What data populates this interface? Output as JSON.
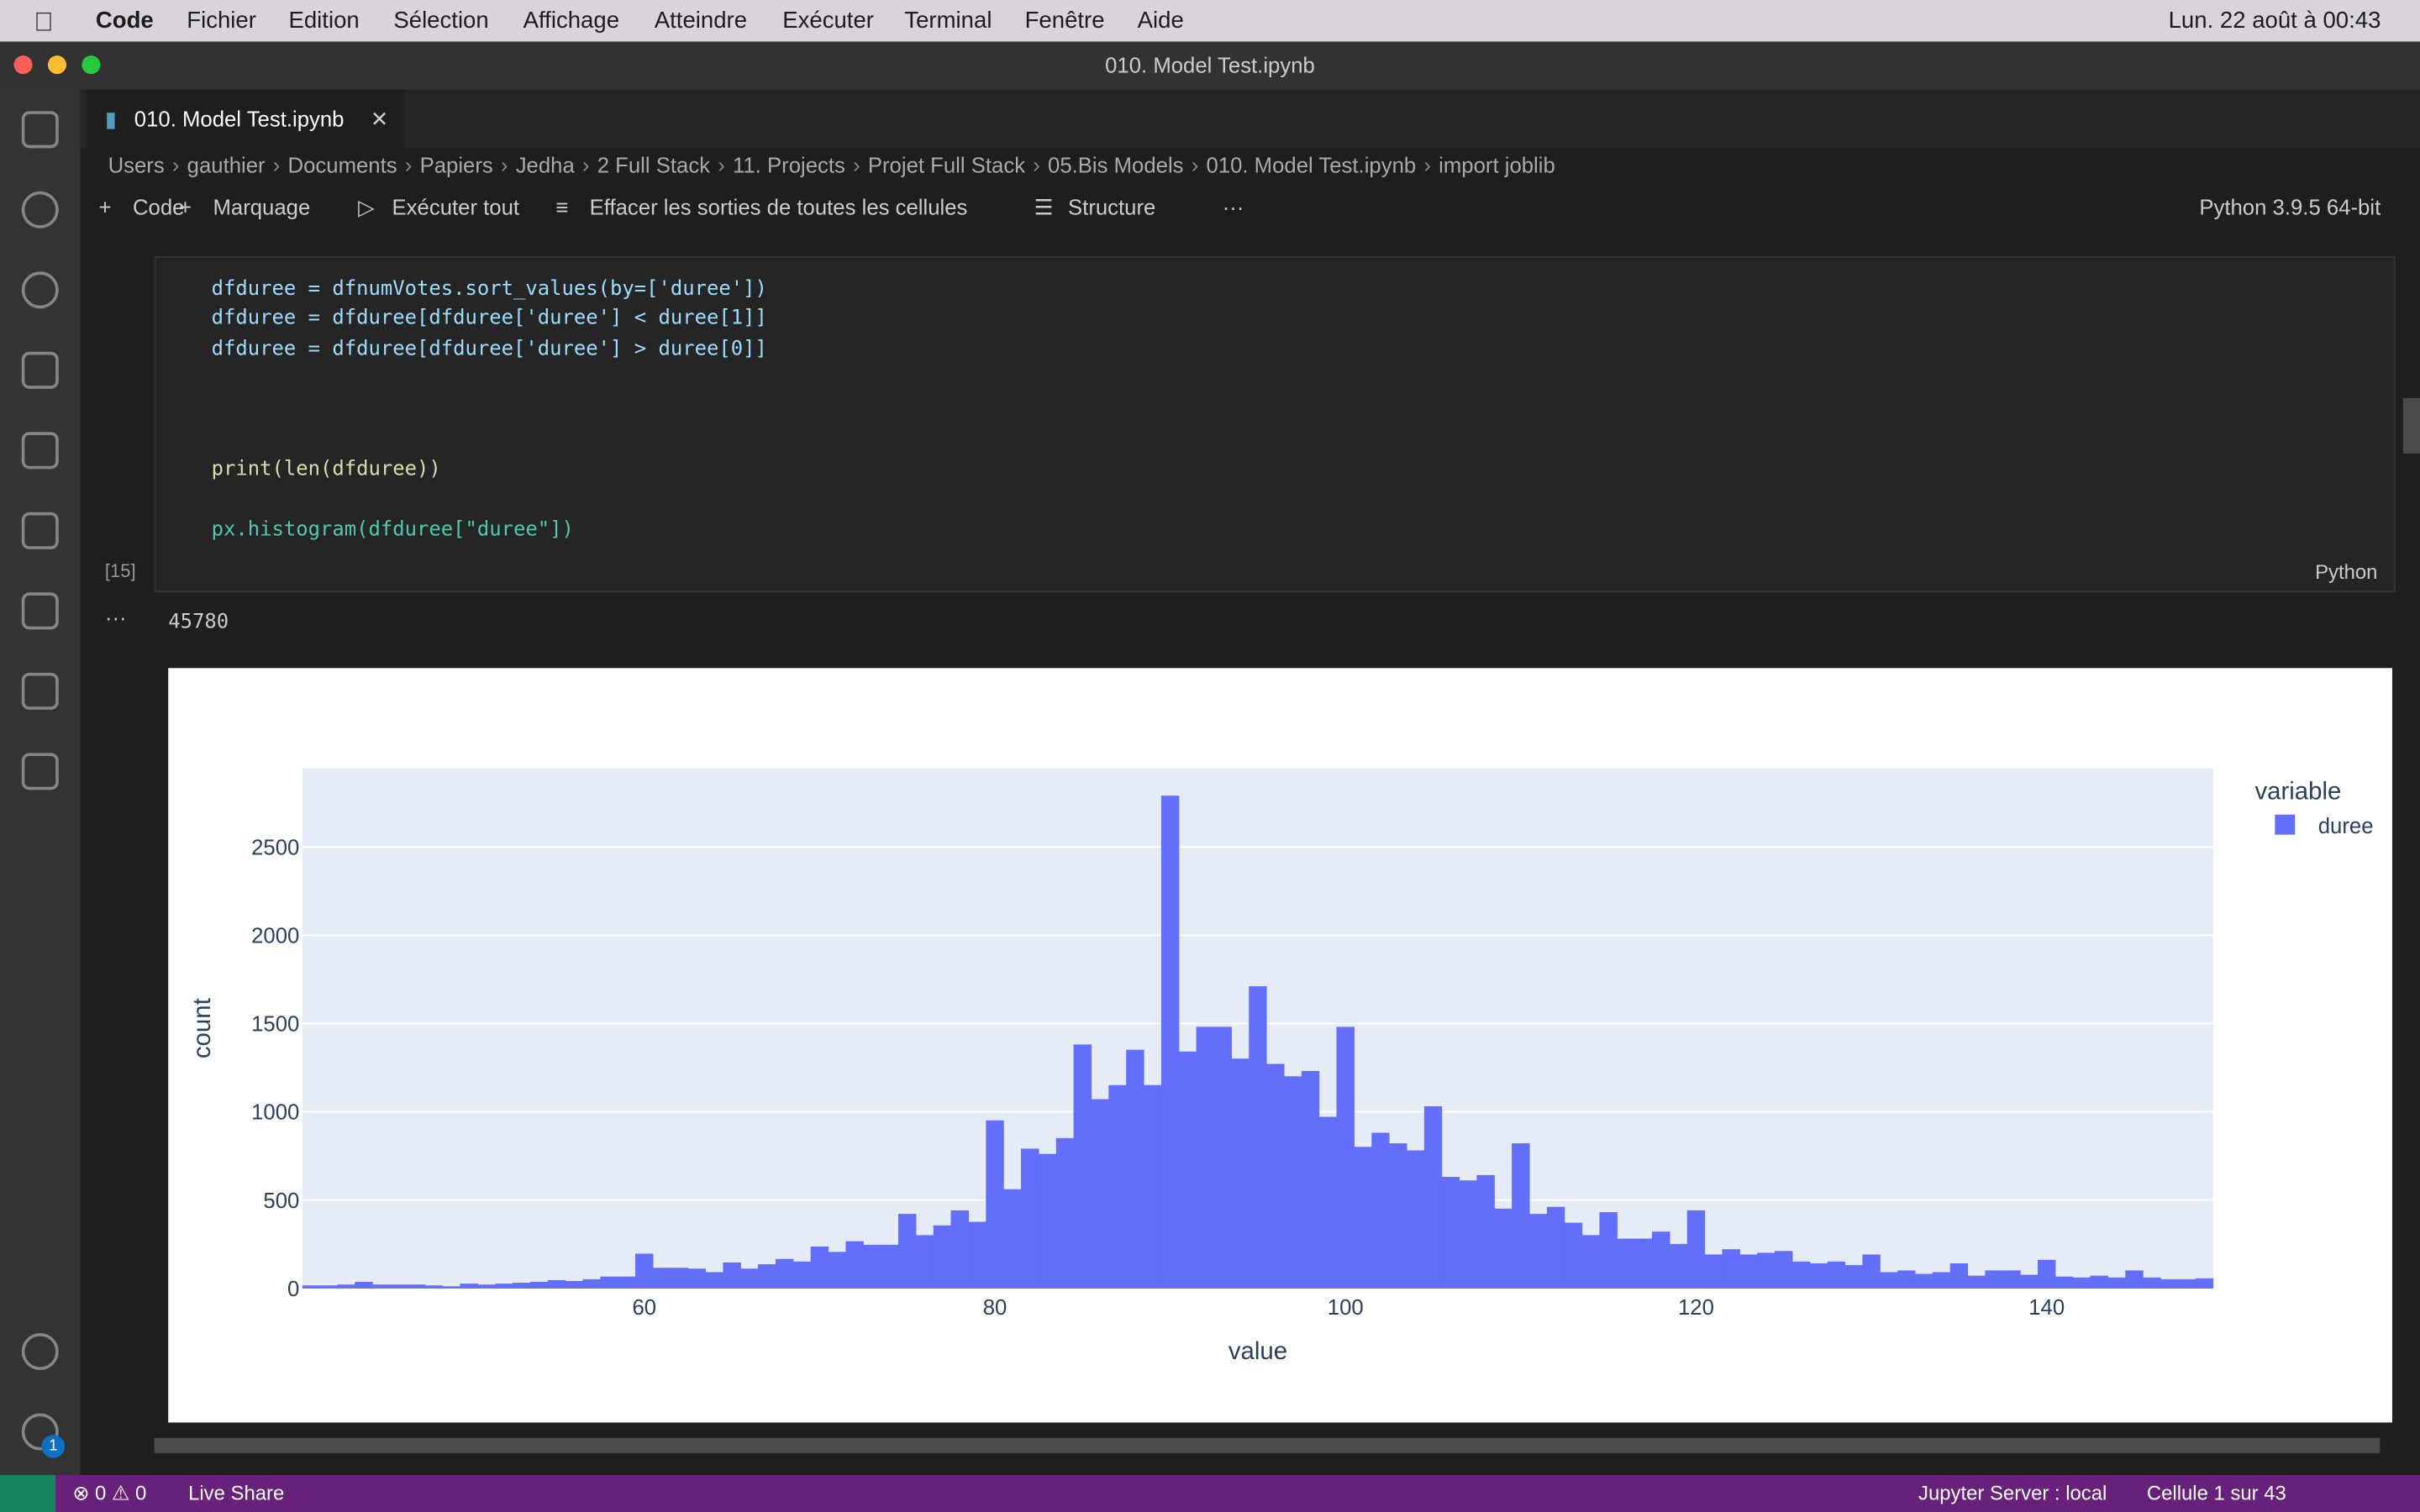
{
  "menu_bar": {
    "app": "Code",
    "items": [
      "Fichier",
      "Edition",
      "Sélection",
      "Affichage",
      "Atteindre",
      "Exécuter",
      "Terminal",
      "Fenêtre",
      "Aide"
    ],
    "clock": "Lun. 22 août à 00:43"
  },
  "window_title": "010. Model Test.ipynb",
  "tab": {
    "label": "010. Model Test.ipynb"
  },
  "breadcrumb": [
    "Users",
    "gauthier",
    "Documents",
    "Papiers",
    "Jedha",
    "2 Full Stack",
    "11. Projects",
    "Projet Full Stack",
    "05.Bis Models",
    "010. Model Test.ipynb",
    "import joblib"
  ],
  "toolbar": {
    "items": [
      "Code",
      "Marquage",
      "Exécuter tout",
      "Effacer les sorties de toutes les cellules",
      "Structure"
    ],
    "kernel": "Python 3.9.5 64-bit"
  },
  "cell": {
    "execution_count": "[15]",
    "language": "Python",
    "code": [
      "dfduree = dfnumVotes.sort_values(by=['duree'])",
      "dfduree = dfduree[dfduree['duree'] < duree[1]]",
      "dfduree = dfduree[dfduree['duree'] > duree[0]]",
      "print(len(dfduree))",
      "px.histogram(dfduree[\"duree\"])"
    ],
    "output_text": "45780"
  },
  "chart_data": {
    "type": "histogram",
    "x_label": "value",
    "y_label": "count",
    "legend_title": "variable",
    "legend_position": "right",
    "grid": true,
    "bins": [
      40.5,
      41.5,
      42.5,
      43.5,
      44.5,
      45.5,
      46.5,
      47.5,
      48.5,
      49.5,
      50.5,
      51.5,
      52.5,
      53.5,
      54.5,
      55.5,
      56.5,
      57.5,
      58.5,
      59.5,
      60.5,
      61.5,
      62.5,
      63.5,
      64.5,
      65.5,
      66.5,
      67.5,
      68.5,
      69.5,
      70.5,
      71.5,
      72.5,
      73.5,
      74.5,
      75.5,
      76.5,
      77.5,
      78.5,
      79.5,
      80.5,
      81.5,
      82.5,
      83.5,
      84.5,
      85.5,
      86.5,
      87.5,
      88.5,
      89.5,
      90.5,
      91.5,
      92.5,
      93.5,
      94.5,
      95.5,
      96.5,
      97.5,
      98.5,
      99.5,
      100.5,
      101.5,
      102.5,
      103.5,
      104.5,
      105.5,
      106.5,
      107.5,
      108.5,
      109.5,
      110.5,
      111.5,
      112.5,
      113.5,
      114.5,
      115.5,
      116.5,
      117.5,
      118.5,
      119.5,
      120.5,
      121.5,
      122.5,
      123.5,
      124.5,
      125.5,
      126.5,
      127.5,
      128.5,
      129.5,
      130.5,
      131.5,
      132.5,
      133.5,
      134.5,
      135.5,
      136.5,
      137.5,
      138.5,
      139.5,
      140.5,
      141.5,
      142.5,
      143.5,
      144.5,
      145.5,
      146.5,
      147.5,
      148.5,
      149.5
    ],
    "series": [
      {
        "name": "duree",
        "color": "#636efa",
        "values": [
          15,
          15,
          20,
          35,
          20,
          20,
          20,
          15,
          10,
          25,
          20,
          25,
          30,
          35,
          45,
          40,
          50,
          65,
          65,
          195,
          115,
          115,
          110,
          90,
          145,
          110,
          135,
          165,
          150,
          235,
          205,
          265,
          245,
          245,
          420,
          300,
          355,
          440,
          375,
          950,
          560,
          790,
          760,
          850,
          1380,
          1070,
          1150,
          1350,
          1150,
          2790,
          1340,
          1480,
          1480,
          1300,
          1710,
          1270,
          1200,
          1230,
          970,
          1480,
          800,
          880,
          820,
          780,
          1030,
          630,
          610,
          640,
          450,
          820,
          420,
          460,
          370,
          300,
          430,
          280,
          280,
          320,
          250,
          440,
          190,
          220,
          190,
          200,
          210,
          150,
          140,
          150,
          130,
          190,
          90,
          100,
          80,
          90,
          140,
          70,
          100,
          100,
          75,
          160,
          65,
          60,
          70,
          60,
          100,
          60,
          50,
          50,
          55
        ]
      }
    ],
    "xlim": [
      40.5,
      149.5
    ],
    "ylim": [
      0,
      2946
    ],
    "xticks": [
      60,
      80,
      100,
      120,
      140
    ],
    "yticks": [
      0,
      500,
      1000,
      1500,
      2000,
      2500
    ]
  },
  "status_bar": {
    "errors": "0",
    "warnings": "0",
    "live_share": "Live Share",
    "jupyter": "Jupyter Server : local",
    "cell_position": "Cellule 1 sur 43",
    "settings_badge": "1"
  }
}
